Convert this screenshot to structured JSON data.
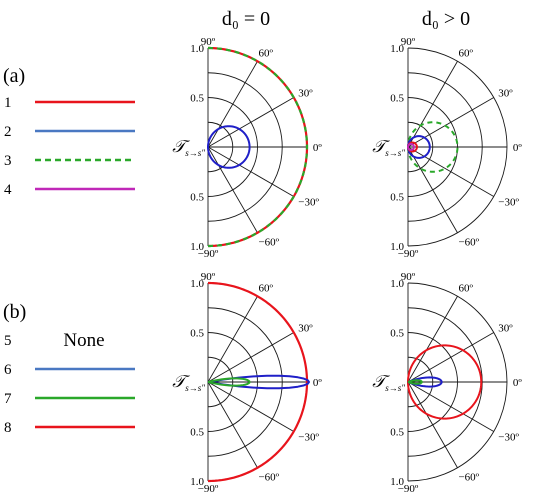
{
  "figure": {
    "col_titles": [
      "d₀ = 0",
      "d₀ > 0"
    ],
    "panel_labels": [
      "(a)",
      "(b)"
    ],
    "legend_a": [
      {
        "num": "1",
        "color": "#e8141c",
        "style": "solid"
      },
      {
        "num": "2",
        "color": "#4a78c2",
        "style": "solid"
      },
      {
        "num": "3",
        "color": "#2aa82a",
        "style": "dashed"
      },
      {
        "num": "4",
        "color": "#c028b8",
        "style": "solid"
      }
    ],
    "legend_b": [
      {
        "num": "5",
        "none_text": "None"
      },
      {
        "num": "6",
        "color": "#4a78c2",
        "style": "solid"
      },
      {
        "num": "7",
        "color": "#2aa82a",
        "style": "solid"
      },
      {
        "num": "8",
        "color": "#e8141c",
        "style": "solid"
      }
    ],
    "radial_label": "𝒯",
    "radial_label_sub": "s→s″"
  },
  "chart_data": [
    {
      "type": "polar",
      "panel": "(a) d₀ = 0",
      "angle_ticks": [
        "90º",
        "60º",
        "30º",
        "0º",
        "−30º",
        "−60º",
        "−90º"
      ],
      "radius_ticks": [
        "1.0",
        "0.5",
        "0.5",
        "1.0"
      ],
      "rlim": [
        0,
        1
      ],
      "thetalim": [
        -90,
        90
      ],
      "series": [
        {
          "color": "#e8141c",
          "style": "solid",
          "shape": "constant",
          "r": 1.0
        },
        {
          "color": "#2aa82a",
          "style": "dashed",
          "shape": "constant",
          "r": 1.0
        },
        {
          "color": "#1f1fc8",
          "style": "solid",
          "shape": "circle",
          "diameter": 0.42
        }
      ]
    },
    {
      "type": "polar",
      "panel": "(a) d₀ > 0",
      "angle_ticks": [
        "90º",
        "60º",
        "30º",
        "0º",
        "−30º",
        "−60º",
        "−90º"
      ],
      "radius_ticks": [
        "1.0",
        "0.5",
        "0.5",
        "1.0"
      ],
      "rlim": [
        0,
        1
      ],
      "thetalim": [
        -90,
        90
      ],
      "series": [
        {
          "color": "#2aa82a",
          "style": "dashed",
          "shape": "circle",
          "diameter": 0.5
        },
        {
          "color": "#1f1fc8",
          "style": "solid",
          "shape": "circle",
          "diameter": 0.22
        },
        {
          "color": "#e8141c",
          "style": "solid",
          "shape": "circle",
          "diameter": 0.09
        },
        {
          "color": "#c028b8",
          "style": "solid",
          "shape": "circle",
          "diameter": 0.06
        }
      ]
    },
    {
      "type": "polar",
      "panel": "(b) d₀ = 0",
      "angle_ticks": [
        "90º",
        "60º",
        "30º",
        "0º",
        "−30º",
        "−60º",
        "−90º"
      ],
      "radius_ticks": [
        "1.0",
        "0.5",
        "0.5",
        "1.0"
      ],
      "rlim": [
        0,
        1
      ],
      "thetalim": [
        -90,
        90
      ],
      "series": [
        {
          "color": "#e8141c",
          "style": "solid",
          "shape": "constant",
          "r": 1.0
        },
        {
          "color": "#1f1fc8",
          "style": "solid",
          "shape": "lobe",
          "length": 1.02,
          "halfwidth_deg": 10
        },
        {
          "color": "#2aa82a",
          "style": "solid",
          "shape": "lobe",
          "length": 0.42,
          "halfwidth_deg": 14
        }
      ]
    },
    {
      "type": "polar",
      "panel": "(b) d₀ > 0",
      "angle_ticks": [
        "90º",
        "60º",
        "30º",
        "0º",
        "−30º",
        "−60º",
        "−90º"
      ],
      "radius_ticks": [
        "1.0",
        "0.5",
        "0.5",
        "1.0"
      ],
      "rlim": [
        0,
        1
      ],
      "thetalim": [
        -90,
        90
      ],
      "series": [
        {
          "color": "#e8141c",
          "style": "solid",
          "shape": "circle",
          "diameter": 0.74
        },
        {
          "color": "#1f1fc8",
          "style": "solid",
          "shape": "lobe",
          "length": 0.34,
          "halfwidth_deg": 22
        },
        {
          "color": "#2aa82a",
          "style": "solid",
          "shape": "lobe",
          "length": 0.14,
          "halfwidth_deg": 20
        }
      ]
    }
  ]
}
